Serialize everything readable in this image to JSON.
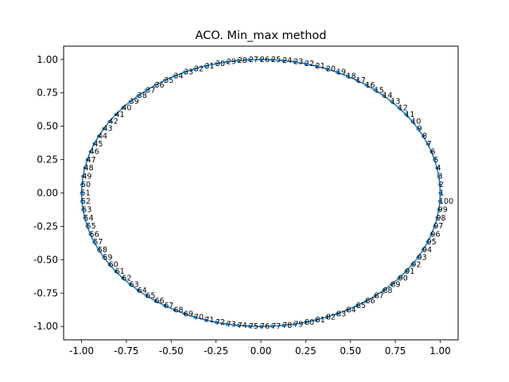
{
  "chart_data": {
    "type": "line",
    "title": "ACO. Min_max method",
    "xlabel": "",
    "ylabel": "",
    "xlim": [
      -1.1,
      1.1
    ],
    "ylim": [
      -1.1,
      1.1
    ],
    "xticks": [
      "-1.00",
      "-0.75",
      "-0.50",
      "-0.25",
      "0.00",
      "0.25",
      "0.50",
      "0.75",
      "1.00"
    ],
    "yticks": [
      "-1.00",
      "-0.75",
      "-0.50",
      "-0.25",
      "0.00",
      "0.25",
      "0.50",
      "0.75",
      "1.00"
    ],
    "xtick_values": [
      -1,
      -0.75,
      -0.5,
      -0.25,
      0,
      0.25,
      0.5,
      0.75,
      1
    ],
    "ytick_values": [
      -1,
      -0.75,
      -0.5,
      -0.25,
      0,
      0.25,
      0.5,
      0.75,
      1
    ],
    "grid": false,
    "series_color": "#1f77b4",
    "marker": "point",
    "closed_tour": true,
    "points": [
      {
        "label": "1",
        "x": 1.0,
        "y": 0.0
      },
      {
        "label": "2",
        "x": 0.998,
        "y": 0.0628
      },
      {
        "label": "3",
        "x": 0.9921,
        "y": 0.1253
      },
      {
        "label": "4",
        "x": 0.9823,
        "y": 0.1874
      },
      {
        "label": "5",
        "x": 0.9686,
        "y": 0.2487
      },
      {
        "label": "6",
        "x": 0.9511,
        "y": 0.309
      },
      {
        "label": "7",
        "x": 0.9298,
        "y": 0.3681
      },
      {
        "label": "8",
        "x": 0.9048,
        "y": 0.4258
      },
      {
        "label": "9",
        "x": 0.8763,
        "y": 0.4818
      },
      {
        "label": "10",
        "x": 0.8443,
        "y": 0.5358
      },
      {
        "label": "11",
        "x": 0.809,
        "y": 0.5878
      },
      {
        "label": "12",
        "x": 0.7705,
        "y": 0.6374
      },
      {
        "label": "13",
        "x": 0.729,
        "y": 0.6845
      },
      {
        "label": "14",
        "x": 0.6845,
        "y": 0.729
      },
      {
        "label": "15",
        "x": 0.6374,
        "y": 0.7705
      },
      {
        "label": "16",
        "x": 0.5878,
        "y": 0.809
      },
      {
        "label": "17",
        "x": 0.5358,
        "y": 0.8443
      },
      {
        "label": "18",
        "x": 0.4818,
        "y": 0.8763
      },
      {
        "label": "19",
        "x": 0.4258,
        "y": 0.9048
      },
      {
        "label": "20",
        "x": 0.3681,
        "y": 0.9298
      },
      {
        "label": "21",
        "x": 0.309,
        "y": 0.9511
      },
      {
        "label": "22",
        "x": 0.2487,
        "y": 0.9686
      },
      {
        "label": "23",
        "x": 0.1874,
        "y": 0.9823
      },
      {
        "label": "24",
        "x": 0.1253,
        "y": 0.9921
      },
      {
        "label": "25",
        "x": 0.0628,
        "y": 0.998
      },
      {
        "label": "26",
        "x": 0.0,
        "y": 1.0
      },
      {
        "label": "27",
        "x": -0.0628,
        "y": 0.998
      },
      {
        "label": "28",
        "x": -0.1253,
        "y": 0.9921
      },
      {
        "label": "29",
        "x": -0.1874,
        "y": 0.9823
      },
      {
        "label": "30",
        "x": -0.2487,
        "y": 0.9686
      },
      {
        "label": "31",
        "x": -0.309,
        "y": 0.9511
      },
      {
        "label": "32",
        "x": -0.3681,
        "y": 0.9298
      },
      {
        "label": "33",
        "x": -0.4258,
        "y": 0.9048
      },
      {
        "label": "34",
        "x": -0.4818,
        "y": 0.8763
      },
      {
        "label": "35",
        "x": -0.5358,
        "y": 0.8443
      },
      {
        "label": "36",
        "x": -0.5878,
        "y": 0.809
      },
      {
        "label": "37",
        "x": -0.6374,
        "y": 0.7705
      },
      {
        "label": "38",
        "x": -0.6845,
        "y": 0.729
      },
      {
        "label": "39",
        "x": -0.729,
        "y": 0.6845
      },
      {
        "label": "40",
        "x": -0.7705,
        "y": 0.6374
      },
      {
        "label": "41",
        "x": -0.809,
        "y": 0.5878
      },
      {
        "label": "42",
        "x": -0.8443,
        "y": 0.5358
      },
      {
        "label": "43",
        "x": -0.8763,
        "y": 0.4818
      },
      {
        "label": "44",
        "x": -0.9048,
        "y": 0.4258
      },
      {
        "label": "45",
        "x": -0.9298,
        "y": 0.3681
      },
      {
        "label": "46",
        "x": -0.9511,
        "y": 0.309
      },
      {
        "label": "47",
        "x": -0.9686,
        "y": 0.2487
      },
      {
        "label": "48",
        "x": -0.9823,
        "y": 0.1874
      },
      {
        "label": "49",
        "x": -0.9921,
        "y": 0.1253
      },
      {
        "label": "50",
        "x": -0.998,
        "y": 0.0628
      },
      {
        "label": "51",
        "x": -1.0,
        "y": 0.0
      },
      {
        "label": "52",
        "x": -0.998,
        "y": -0.0628
      },
      {
        "label": "53",
        "x": -0.9921,
        "y": -0.1253
      },
      {
        "label": "54",
        "x": -0.9823,
        "y": -0.1874
      },
      {
        "label": "55",
        "x": -0.9686,
        "y": -0.2487
      },
      {
        "label": "56",
        "x": -0.9511,
        "y": -0.309
      },
      {
        "label": "57",
        "x": -0.9298,
        "y": -0.3681
      },
      {
        "label": "58",
        "x": -0.9048,
        "y": -0.4258
      },
      {
        "label": "59",
        "x": -0.8763,
        "y": -0.4818
      },
      {
        "label": "60",
        "x": -0.8443,
        "y": -0.5358
      },
      {
        "label": "61",
        "x": -0.809,
        "y": -0.5878
      },
      {
        "label": "62",
        "x": -0.7705,
        "y": -0.6374
      },
      {
        "label": "63",
        "x": -0.729,
        "y": -0.6845
      },
      {
        "label": "64",
        "x": -0.6845,
        "y": -0.729
      },
      {
        "label": "65",
        "x": -0.6374,
        "y": -0.7705
      },
      {
        "label": "66",
        "x": -0.5878,
        "y": -0.809
      },
      {
        "label": "67",
        "x": -0.5358,
        "y": -0.8443
      },
      {
        "label": "68",
        "x": -0.4818,
        "y": -0.8763
      },
      {
        "label": "69",
        "x": -0.4258,
        "y": -0.9048
      },
      {
        "label": "70",
        "x": -0.3681,
        "y": -0.9298
      },
      {
        "label": "71",
        "x": -0.309,
        "y": -0.9511
      },
      {
        "label": "72",
        "x": -0.2487,
        "y": -0.9686
      },
      {
        "label": "73",
        "x": -0.1874,
        "y": -0.9823
      },
      {
        "label": "74",
        "x": -0.1253,
        "y": -0.9921
      },
      {
        "label": "75",
        "x": -0.0628,
        "y": -0.998
      },
      {
        "label": "76",
        "x": 0.0,
        "y": -1.0
      },
      {
        "label": "77",
        "x": 0.0628,
        "y": -0.998
      },
      {
        "label": "78",
        "x": 0.1253,
        "y": -0.9921
      },
      {
        "label": "79",
        "x": 0.1874,
        "y": -0.9823
      },
      {
        "label": "80",
        "x": 0.2487,
        "y": -0.9686
      },
      {
        "label": "81",
        "x": 0.309,
        "y": -0.9511
      },
      {
        "label": "82",
        "x": 0.3681,
        "y": -0.9298
      },
      {
        "label": "83",
        "x": 0.4258,
        "y": -0.9048
      },
      {
        "label": "84",
        "x": 0.4818,
        "y": -0.8763
      },
      {
        "label": "85",
        "x": 0.5358,
        "y": -0.8443
      },
      {
        "label": "86",
        "x": 0.5878,
        "y": -0.809
      },
      {
        "label": "87",
        "x": 0.6374,
        "y": -0.7705
      },
      {
        "label": "88",
        "x": 0.6845,
        "y": -0.729
      },
      {
        "label": "89",
        "x": 0.729,
        "y": -0.6845
      },
      {
        "label": "90",
        "x": 0.7705,
        "y": -0.6374
      },
      {
        "label": "91",
        "x": 0.809,
        "y": -0.5878
      },
      {
        "label": "92",
        "x": 0.8443,
        "y": -0.5358
      },
      {
        "label": "93",
        "x": 0.8763,
        "y": -0.4818
      },
      {
        "label": "94",
        "x": 0.9048,
        "y": -0.4258
      },
      {
        "label": "95",
        "x": 0.9298,
        "y": -0.3681
      },
      {
        "label": "96",
        "x": 0.9511,
        "y": -0.309
      },
      {
        "label": "97",
        "x": 0.9686,
        "y": -0.2487
      },
      {
        "label": "98",
        "x": 0.9823,
        "y": -0.1874
      },
      {
        "label": "99",
        "x": 0.9921,
        "y": -0.1253
      },
      {
        "label": "100",
        "x": 0.998,
        "y": -0.0628
      }
    ]
  }
}
